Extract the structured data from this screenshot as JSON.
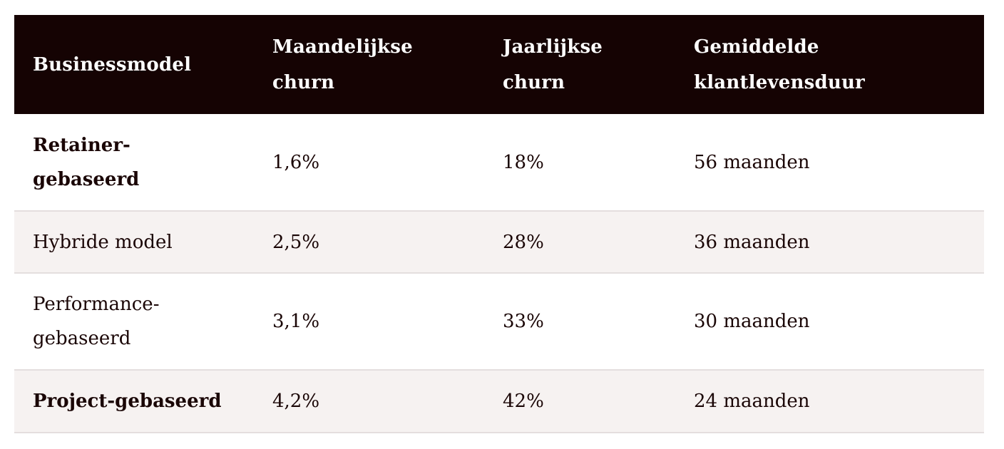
{
  "table": {
    "headers": [
      "Businessmodel",
      "Maandelijkse churn",
      "Jaarlijkse churn",
      "Gemiddelde klantlevensduur"
    ],
    "rows": [
      {
        "model": "Retainer-gebaseerd",
        "monthly": "1,6%",
        "yearly": "18%",
        "lifetime": "56 maanden"
      },
      {
        "model": "Hybride model",
        "monthly": "2,5%",
        "yearly": "28%",
        "lifetime": "36 maanden"
      },
      {
        "model": "Performance-gebaseerd",
        "monthly": "3,1%",
        "yearly": "33%",
        "lifetime": "30 maanden"
      },
      {
        "model": "Project-gebaseerd",
        "monthly": "4,2%",
        "yearly": "42%",
        "lifetime": "24 maanden"
      }
    ]
  },
  "colors": {
    "header_bg": "#150303",
    "header_text": "#ffffff",
    "body_text": "#1a0606",
    "row_alt_bg": "#f6f2f1",
    "row_border": "#e4dede"
  }
}
